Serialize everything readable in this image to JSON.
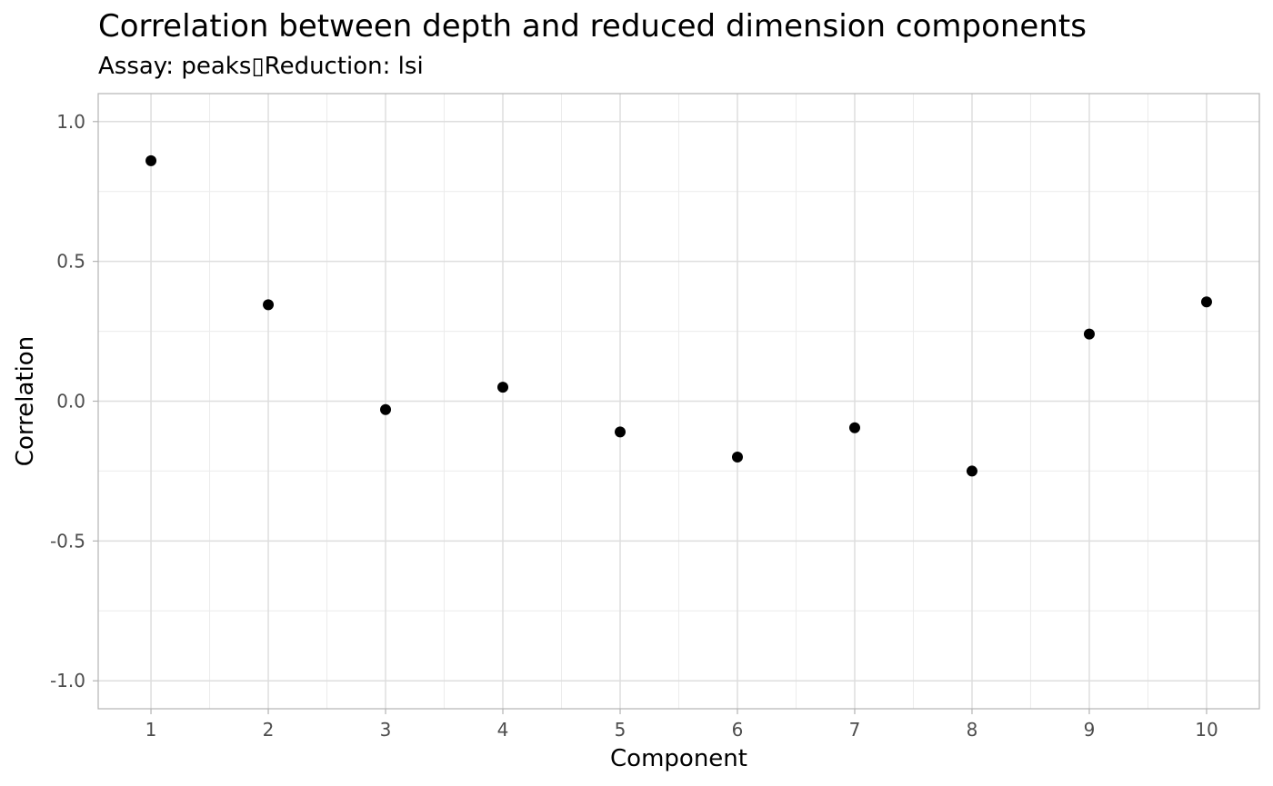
{
  "chart_data": {
    "type": "scatter",
    "title": "Correlation between depth and reduced dimension components",
    "subtitle": "Assay: peaks▯Reduction: lsi",
    "xlabel": "Component",
    "ylabel": "Correlation",
    "x": [
      1,
      2,
      3,
      4,
      5,
      6,
      7,
      8,
      9,
      10
    ],
    "y": [
      0.86,
      0.345,
      -0.03,
      0.05,
      -0.11,
      -0.2,
      -0.095,
      -0.25,
      0.24,
      0.355
    ],
    "xlim": [
      0.55,
      10.45
    ],
    "ylim": [
      -1.1,
      1.1
    ],
    "x_ticks": [
      1,
      2,
      3,
      4,
      5,
      6,
      7,
      8,
      9,
      10
    ],
    "x_tick_labels": [
      "1",
      "2",
      "3",
      "4",
      "5",
      "6",
      "7",
      "8",
      "9",
      "10"
    ],
    "y_ticks": [
      -1.0,
      -0.5,
      0.0,
      0.5,
      1.0
    ],
    "y_tick_labels": [
      "-1.0",
      "-0.5",
      "0.0",
      "0.5",
      "1.0"
    ],
    "grid": true,
    "legend": "none",
    "point_color": "#000000",
    "grid_color": "#dedede",
    "panel_border_color": "#b3b3b3"
  }
}
